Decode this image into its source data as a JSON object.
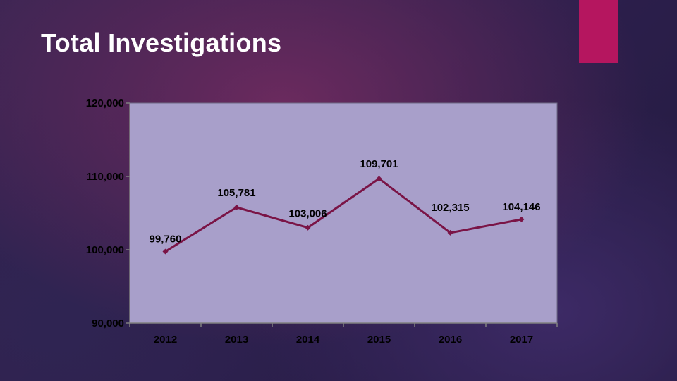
{
  "slide": {
    "title": "Total Investigations",
    "accent_color": "#b5165f"
  },
  "chart_data": {
    "type": "line",
    "title": "",
    "xlabel": "",
    "ylabel": "",
    "categories": [
      "2012",
      "2013",
      "2014",
      "2015",
      "2016",
      "2017"
    ],
    "values": [
      99760,
      105781,
      103006,
      109701,
      102315,
      104146
    ],
    "data_labels": [
      "99,760",
      "105,781",
      "103,006",
      "109,701",
      "102,315",
      "104,146"
    ],
    "ylim": [
      90000,
      120000
    ],
    "yticks": [
      90000,
      100000,
      110000,
      120000
    ],
    "ytick_labels": [
      "90,000",
      "100,000",
      "110,000",
      "120,000"
    ],
    "grid": false,
    "legend": "none",
    "plot_background": "#a89fca",
    "line_color": "#7a1446",
    "marker": "diamond"
  }
}
